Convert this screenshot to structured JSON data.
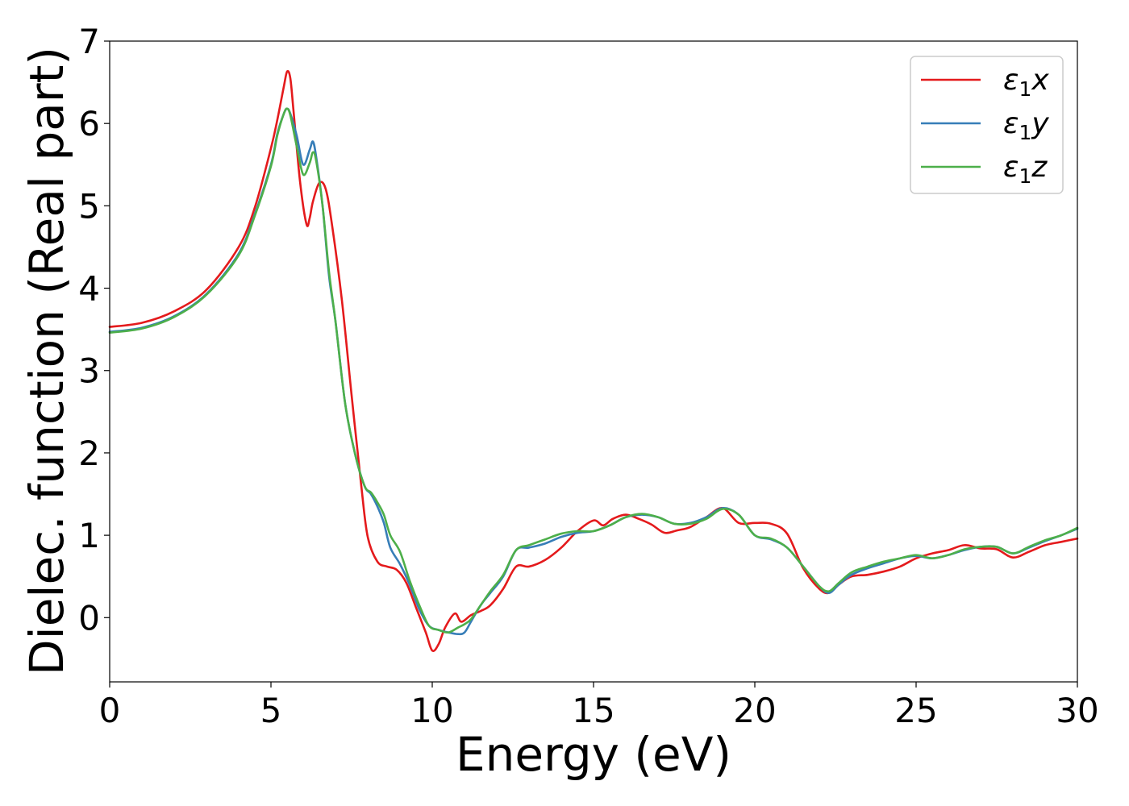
{
  "chart_data": {
    "type": "line",
    "title": "",
    "xlabel": "Energy (eV)",
    "ylabel": "Dielec. function (Real part)",
    "xlim": [
      0,
      30
    ],
    "ylim": [
      -0.78,
      7
    ],
    "xticks": [
      0,
      5,
      10,
      15,
      20,
      25,
      30
    ],
    "yticks": [
      0,
      1,
      2,
      3,
      4,
      5,
      6,
      7
    ],
    "grid": false,
    "legend_position": "top-right",
    "series": [
      {
        "name": "ε1x",
        "legend_base": "ε",
        "legend_sub": "1",
        "legend_suffix": "x",
        "color": "#e41a1c",
        "x": [
          0,
          1,
          2,
          3,
          4,
          4.5,
          5,
          5.2,
          5.4,
          5.5,
          5.6,
          5.7,
          5.9,
          6.1,
          6.2,
          6.3,
          6.5,
          6.7,
          6.9,
          7.2,
          7.5,
          7.8,
          8.0,
          8.3,
          8.6,
          8.9,
          9.2,
          9.5,
          9.8,
          10.0,
          10.2,
          10.4,
          10.7,
          10.9,
          11.2,
          11.5,
          11.8,
          12.2,
          12.6,
          13.0,
          13.5,
          14.0,
          14.5,
          15.0,
          15.3,
          15.6,
          16.0,
          16.4,
          16.8,
          17.2,
          17.6,
          18.0,
          18.5,
          19.0,
          19.5,
          20.0,
          20.5,
          21.0,
          21.5,
          22.0,
          22.3,
          22.6,
          23.0,
          23.5,
          24.0,
          24.5,
          25.0,
          25.5,
          26.0,
          26.5,
          27.0,
          27.5,
          28.0,
          28.5,
          29.0,
          29.5,
          30.0
        ],
        "y": [
          3.53,
          3.58,
          3.72,
          3.98,
          4.5,
          4.98,
          5.7,
          6.05,
          6.45,
          6.63,
          6.55,
          6.15,
          5.3,
          4.78,
          4.85,
          5.05,
          5.28,
          5.2,
          4.75,
          3.85,
          2.7,
          1.6,
          0.98,
          0.68,
          0.62,
          0.58,
          0.42,
          0.12,
          -0.18,
          -0.4,
          -0.32,
          -0.12,
          0.05,
          -0.05,
          0.03,
          0.08,
          0.15,
          0.35,
          0.62,
          0.62,
          0.7,
          0.85,
          1.05,
          1.18,
          1.12,
          1.2,
          1.25,
          1.2,
          1.13,
          1.03,
          1.06,
          1.1,
          1.22,
          1.33,
          1.15,
          1.15,
          1.14,
          1.02,
          0.6,
          0.35,
          0.3,
          0.4,
          0.5,
          0.52,
          0.56,
          0.62,
          0.72,
          0.78,
          0.82,
          0.88,
          0.84,
          0.83,
          0.73,
          0.8,
          0.88,
          0.92,
          0.96
        ]
      },
      {
        "name": "ε1y",
        "legend_base": "ε",
        "legend_sub": "1",
        "legend_suffix": "y",
        "color": "#377eb8",
        "x": [
          0,
          1,
          2,
          3,
          4,
          4.5,
          5,
          5.2,
          5.4,
          5.5,
          5.6,
          5.8,
          6.0,
          6.2,
          6.3,
          6.4,
          6.6,
          6.8,
          7.0,
          7.3,
          7.6,
          7.9,
          8.1,
          8.3,
          8.5,
          8.7,
          9.0,
          9.3,
          9.6,
          9.9,
          10.2,
          10.5,
          10.8,
          11.0,
          11.2,
          11.5,
          11.8,
          12.2,
          12.6,
          13.0,
          13.5,
          14.0,
          14.5,
          15.0,
          15.5,
          16.0,
          16.5,
          17.0,
          17.5,
          18.0,
          18.5,
          19.0,
          19.5,
          20.0,
          20.5,
          21.0,
          21.5,
          22.0,
          22.3,
          22.6,
          23.0,
          23.5,
          24.0,
          24.5,
          25.0,
          25.5,
          26.0,
          26.5,
          27.0,
          27.5,
          28.0,
          28.5,
          29.0,
          29.5,
          30.0
        ],
        "y": [
          3.47,
          3.52,
          3.66,
          3.93,
          4.42,
          4.9,
          5.5,
          5.88,
          6.12,
          6.18,
          6.12,
          5.85,
          5.5,
          5.68,
          5.78,
          5.6,
          5.0,
          4.15,
          3.6,
          2.6,
          2.0,
          1.6,
          1.5,
          1.35,
          1.15,
          0.85,
          0.65,
          0.4,
          0.1,
          -0.1,
          -0.15,
          -0.18,
          -0.2,
          -0.18,
          -0.05,
          0.15,
          0.3,
          0.5,
          0.82,
          0.85,
          0.9,
          0.98,
          1.03,
          1.05,
          1.12,
          1.22,
          1.25,
          1.22,
          1.14,
          1.15,
          1.22,
          1.33,
          1.25,
          1.0,
          0.95,
          0.85,
          0.62,
          0.38,
          0.3,
          0.4,
          0.52,
          0.6,
          0.66,
          0.72,
          0.75,
          0.72,
          0.76,
          0.82,
          0.86,
          0.86,
          0.78,
          0.85,
          0.93,
          1.0,
          1.08
        ]
      },
      {
        "name": "ε1z",
        "legend_base": "ε",
        "legend_sub": "1",
        "legend_suffix": "z",
        "color": "#4daf4a",
        "x": [
          0,
          1,
          2,
          3,
          4,
          4.5,
          5,
          5.2,
          5.4,
          5.5,
          5.6,
          5.8,
          6.0,
          6.2,
          6.3,
          6.4,
          6.6,
          6.8,
          7.0,
          7.3,
          7.6,
          7.9,
          8.1,
          8.3,
          8.5,
          8.7,
          9.0,
          9.3,
          9.6,
          9.9,
          10.2,
          10.5,
          10.8,
          11.0,
          11.2,
          11.5,
          11.8,
          12.2,
          12.6,
          13.0,
          13.5,
          14.0,
          14.5,
          15.0,
          15.5,
          16.0,
          16.5,
          17.0,
          17.5,
          18.0,
          18.5,
          19.0,
          19.5,
          20.0,
          20.5,
          21.0,
          21.5,
          22.0,
          22.3,
          22.6,
          23.0,
          23.5,
          24.0,
          24.5,
          25.0,
          25.5,
          26.0,
          26.5,
          27.0,
          27.5,
          28.0,
          28.5,
          29.0,
          29.5,
          30.0
        ],
        "y": [
          3.46,
          3.51,
          3.65,
          3.92,
          4.4,
          4.88,
          5.48,
          5.86,
          6.12,
          6.18,
          6.1,
          5.72,
          5.38,
          5.52,
          5.65,
          5.55,
          5.0,
          4.2,
          3.6,
          2.6,
          2.0,
          1.6,
          1.52,
          1.4,
          1.25,
          1.0,
          0.8,
          0.45,
          0.15,
          -0.1,
          -0.15,
          -0.18,
          -0.12,
          -0.08,
          -0.02,
          0.15,
          0.32,
          0.52,
          0.82,
          0.88,
          0.95,
          1.02,
          1.05,
          1.05,
          1.12,
          1.22,
          1.26,
          1.22,
          1.14,
          1.14,
          1.2,
          1.32,
          1.25,
          1.0,
          0.96,
          0.85,
          0.62,
          0.38,
          0.32,
          0.42,
          0.55,
          0.62,
          0.68,
          0.72,
          0.76,
          0.72,
          0.76,
          0.83,
          0.86,
          0.86,
          0.78,
          0.86,
          0.94,
          1.0,
          1.09
        ]
      }
    ]
  }
}
